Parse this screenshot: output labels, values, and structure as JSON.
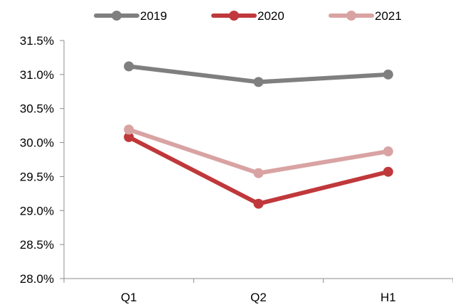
{
  "chart_data": {
    "type": "line",
    "title": "",
    "xlabel": "",
    "ylabel": "",
    "categories": [
      "Q1",
      "Q2",
      "H1"
    ],
    "series": [
      {
        "name": "2019",
        "values": [
          31.12,
          30.89,
          31.0
        ],
        "color": "#7f7f7f"
      },
      {
        "name": "2020",
        "values": [
          30.08,
          29.1,
          29.57
        ],
        "color": "#c0383b"
      },
      {
        "name": "2021",
        "values": [
          30.19,
          29.55,
          29.87
        ],
        "color": "#d9a3a3"
      }
    ],
    "ylim": [
      28.0,
      31.5
    ],
    "yticks": [
      28.0,
      28.5,
      29.0,
      29.5,
      30.0,
      30.5,
      31.0,
      31.5
    ],
    "ytick_labels": [
      "28.0%",
      "28.5%",
      "29.0%",
      "29.5%",
      "30.0%",
      "30.5%",
      "31.0%",
      "31.5%"
    ],
    "grid": false,
    "legend": "top-center"
  }
}
